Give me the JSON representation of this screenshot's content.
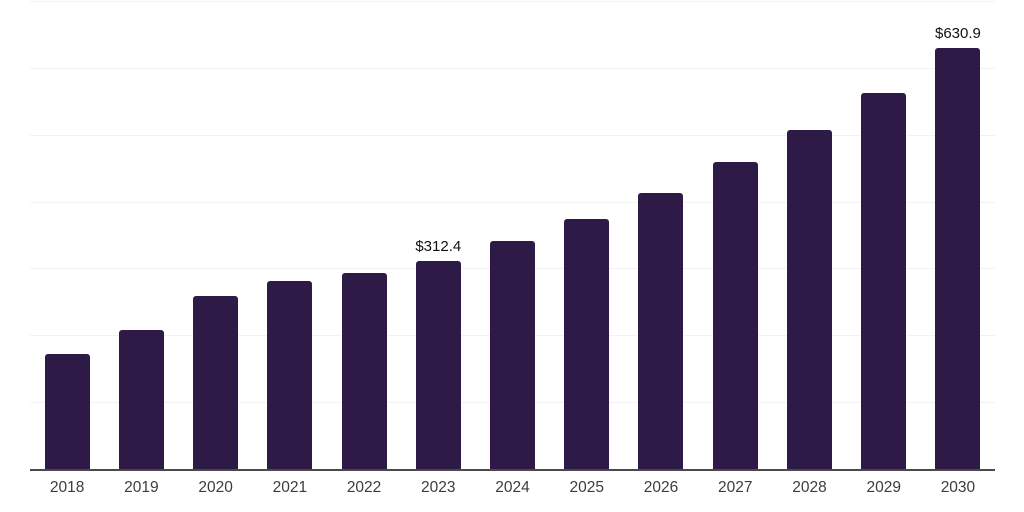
{
  "chart_data": {
    "type": "bar",
    "title": "",
    "xlabel": "",
    "ylabel": "",
    "categories": [
      "2018",
      "2019",
      "2020",
      "2021",
      "2022",
      "2023",
      "2024",
      "2025",
      "2026",
      "2027",
      "2028",
      "2029",
      "2030"
    ],
    "values": [
      173,
      210,
      260,
      283,
      295,
      312.4,
      342,
      375,
      415,
      460,
      509,
      564,
      630.9
    ],
    "data_labels": [
      "",
      "",
      "",
      "",
      "",
      "$312.4",
      "",
      "",
      "",
      "",
      "",
      "",
      "$630.9"
    ],
    "ylim": [
      0,
      700
    ],
    "gridline_values": [
      100,
      200,
      300,
      400,
      500,
      600,
      700
    ],
    "grid_on": true,
    "legend_position": "none",
    "style": {
      "bar_color": "#2e1a47",
      "gridline_color": "#f2f2f2",
      "axis_line_color": "#4a4a4a",
      "x_label_color": "#3c3c3c",
      "data_label_color": "#111111",
      "background_color": "#ffffff"
    }
  }
}
